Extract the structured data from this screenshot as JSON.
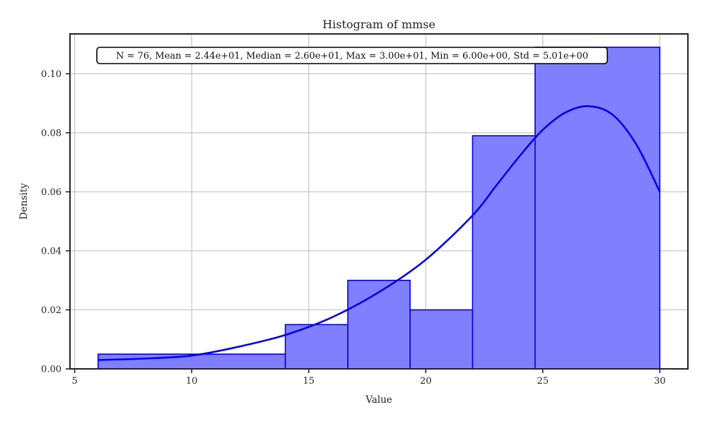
{
  "chart_data": {
    "type": "histogram",
    "title": "Histogram of mmse",
    "xlabel": "Value",
    "ylabel": "Density",
    "xlim": [
      4.8,
      31.2
    ],
    "ylim": [
      0,
      0.1135
    ],
    "xticks": [
      5,
      10,
      15,
      20,
      25,
      30
    ],
    "yticks": [
      0.0,
      0.02,
      0.04,
      0.06,
      0.08,
      0.1
    ],
    "ytick_labels": [
      "0.00",
      "0.02",
      "0.04",
      "0.06",
      "0.08",
      "0.10"
    ],
    "grid": true,
    "bins": [
      {
        "x0": 6.0,
        "x1": 14.0,
        "density": 0.005
      },
      {
        "x0": 14.0,
        "x1": 16.67,
        "density": 0.015
      },
      {
        "x0": 16.67,
        "x1": 19.33,
        "density": 0.03
      },
      {
        "x0": 19.33,
        "x1": 22.0,
        "density": 0.02
      },
      {
        "x0": 22.0,
        "x1": 24.67,
        "density": 0.079
      },
      {
        "x0": 24.67,
        "x1": 30.0,
        "density": 0.109
      }
    ],
    "kde": {
      "x": [
        6,
        8,
        10,
        12,
        14,
        16,
        18,
        20,
        22,
        23,
        24,
        25,
        26,
        27,
        28,
        29,
        30
      ],
      "y": [
        0.003,
        0.0035,
        0.0045,
        0.0075,
        0.0115,
        0.0175,
        0.026,
        0.037,
        0.052,
        0.062,
        0.072,
        0.081,
        0.087,
        0.089,
        0.086,
        0.076,
        0.06
      ]
    },
    "annotation": "N = 76, Mean = 2.44e+01, Median = 2.60e+01, Max = 3.00e+01, Min = 6.00e+00, Std = 5.01e+00",
    "colors": {
      "bar_fill": "#8080ff",
      "bar_edge": "#0000dd",
      "kde_line": "#0000ee",
      "grid": "#cccccc",
      "axes": "#222222"
    }
  }
}
